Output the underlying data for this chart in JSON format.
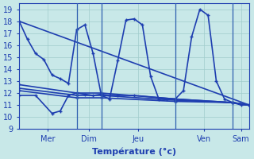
{
  "background_color": "#c8e8e8",
  "grid_color": "#a0cccc",
  "line_color": "#1e3eb0",
  "xlabel": "Température (°c)",
  "ylim": [
    9,
    19.5
  ],
  "yticks": [
    9,
    10,
    11,
    12,
    13,
    14,
    15,
    16,
    17,
    18,
    19
  ],
  "xlim": [
    0,
    28
  ],
  "day_boundaries": [
    7,
    10,
    19,
    26
  ],
  "x_tick_positions": [
    3.5,
    8.5,
    14.5,
    22.5,
    27
  ],
  "x_tick_labels": [
    "Mer",
    "Dim",
    "Jeu",
    "Ven",
    "Sam"
  ],
  "series": [
    {
      "x": [
        0,
        1,
        2,
        3,
        4,
        5,
        6,
        7,
        8,
        9,
        10,
        11,
        12,
        13,
        14,
        15,
        16,
        17,
        18,
        19,
        20,
        21,
        22,
        23,
        24,
        25,
        26,
        27,
        28
      ],
      "y": [
        18,
        16.5,
        15.3,
        14.8,
        13.5,
        13.2,
        12.8,
        17.3,
        17.7,
        15.3,
        11.8,
        11.5,
        14.7,
        18.1,
        18.2,
        17.7,
        13.4,
        11.5,
        11.5,
        11.5,
        12.2,
        16.7,
        19.0,
        18.5,
        13.0,
        11.5,
        11.2,
        11.0,
        11.0
      ]
    },
    {
      "x": [
        0,
        7,
        10,
        19,
        26,
        28
      ],
      "y": [
        12.7,
        12.0,
        12.0,
        11.5,
        11.2,
        11.0
      ]
    },
    {
      "x": [
        0,
        7,
        10,
        19,
        26,
        28
      ],
      "y": [
        12.4,
        11.8,
        11.8,
        11.4,
        11.2,
        11.0
      ]
    },
    {
      "x": [
        0,
        7,
        10,
        19,
        26,
        28
      ],
      "y": [
        12.2,
        11.6,
        11.6,
        11.3,
        11.2,
        11.0
      ]
    },
    {
      "x": [
        0,
        28
      ],
      "y": [
        18,
        11.0
      ]
    },
    {
      "x": [
        0,
        2,
        4,
        5,
        6,
        7,
        8,
        9,
        10,
        11,
        12,
        14,
        19,
        26,
        28
      ],
      "y": [
        11.8,
        11.8,
        10.3,
        10.5,
        11.8,
        12.0,
        11.9,
        11.8,
        11.9,
        11.8,
        11.8,
        11.8,
        11.5,
        11.2,
        11.0
      ]
    }
  ]
}
